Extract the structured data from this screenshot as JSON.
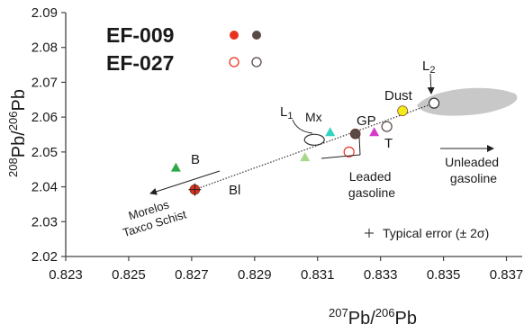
{
  "chart_data": {
    "type": "scatter",
    "xlabel_parts": [
      "207",
      "Pb/",
      "206",
      "Pb"
    ],
    "ylabel_parts": [
      "208",
      "Pb/",
      "206",
      "Pb"
    ],
    "xlim": [
      0.823,
      0.8375
    ],
    "ylim": [
      2.02,
      2.09
    ],
    "x_ticks": [
      "0.823",
      "0.825",
      "0.827",
      "0.829",
      "0.831",
      "0.833",
      "0.835",
      "0.837"
    ],
    "y_ticks": [
      "2.02",
      "2.03",
      "2.04",
      "2.05",
      "2.06",
      "2.07",
      "2.08",
      "2.09"
    ],
    "grid": false,
    "legend": [
      {
        "name": "EF-009",
        "filled": true,
        "colors": [
          "#e8321e",
          "#5a4a45"
        ]
      },
      {
        "name": "EF-027",
        "filled": false,
        "colors": [
          "#e8321e",
          "#5a4a45"
        ]
      }
    ],
    "points": [
      {
        "label": "B",
        "x": 0.8265,
        "y": 2.0455,
        "shape": "triangle",
        "color": "#2fa84a"
      },
      {
        "label": "Bl",
        "x": 0.8271,
        "y": 2.0392,
        "shape": "circle",
        "color": "#e0321e",
        "cross": true
      },
      {
        "label": "Mx",
        "x": 0.8314,
        "y": 2.0557,
        "shape": "triangle",
        "color": "#34d3c0"
      },
      {
        "label": "GP",
        "x": 0.8322,
        "y": 2.0552,
        "shape": "circle",
        "color": "#5a4a45"
      },
      {
        "label": "T",
        "x": 0.8328,
        "y": 2.0557,
        "shape": "triangle",
        "color": "#d63ac8"
      },
      {
        "label": "Dust",
        "x": 0.8337,
        "y": 2.0618,
        "shape": "circle",
        "color": "#f2ea1a"
      },
      {
        "label": "",
        "x": 0.832,
        "y": 2.05,
        "shape": "circle",
        "color": "#e8321e",
        "open": true
      },
      {
        "label": "",
        "x": 0.8332,
        "y": 2.0573,
        "shape": "circle",
        "color": "#5a4a45",
        "open": true
      },
      {
        "label": "",
        "x": 0.8306,
        "y": 2.0485,
        "shape": "triangle",
        "color": "#a7d88a"
      },
      {
        "label": "L1",
        "x": 0.8309,
        "y": 2.0535,
        "shape": "ellipse",
        "color": "#333333",
        "open": true
      },
      {
        "label": "L2",
        "x": 0.8347,
        "y": 2.064,
        "shape": "circle",
        "color": "#333333",
        "open": true
      }
    ],
    "annotations": {
      "leaded": [
        "Leaded",
        "gasoline"
      ],
      "unleaded": [
        "Unleaded",
        "gasoline"
      ],
      "morelos": [
        "Morelos",
        "Taxco Schist"
      ],
      "error": "Typical error (± 2σ)"
    },
    "mixing_line": {
      "from": [
        0.8271,
        2.0392
      ],
      "to": [
        0.8347,
        2.064
      ]
    }
  }
}
